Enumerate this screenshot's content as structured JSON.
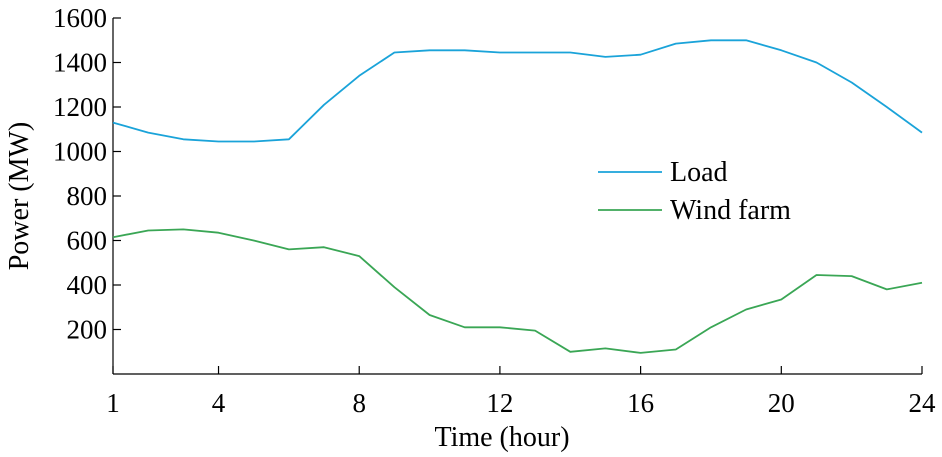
{
  "chart_data": {
    "type": "line",
    "xlabel": "Time (hour)",
    "ylabel": "Power (MW)",
    "xlim": [
      1,
      24
    ],
    "ylim": [
      0,
      1600
    ],
    "xticks": [
      1,
      4,
      8,
      12,
      16,
      20,
      24
    ],
    "yticks": [
      200,
      400,
      600,
      800,
      1000,
      1200,
      1400,
      1600
    ],
    "legend_position": "right-center",
    "grid": false,
    "x": [
      1,
      2,
      3,
      4,
      5,
      6,
      7,
      8,
      9,
      10,
      11,
      12,
      13,
      14,
      15,
      16,
      17,
      18,
      19,
      20,
      21,
      22,
      23,
      24
    ],
    "series": [
      {
        "name": "Load",
        "color": "#1aa3d9",
        "values": [
          1130,
          1085,
          1055,
          1045,
          1045,
          1055,
          1210,
          1340,
          1445,
          1455,
          1455,
          1445,
          1445,
          1445,
          1425,
          1435,
          1485,
          1500,
          1500,
          1455,
          1400,
          1310,
          1200,
          1085
        ]
      },
      {
        "name": "Wind farm",
        "color": "#3aa655",
        "values": [
          615,
          645,
          650,
          635,
          600,
          560,
          570,
          530,
          390,
          265,
          210,
          210,
          195,
          100,
          115,
          95,
          110,
          210,
          290,
          335,
          445,
          440,
          380,
          410
        ]
      }
    ]
  }
}
